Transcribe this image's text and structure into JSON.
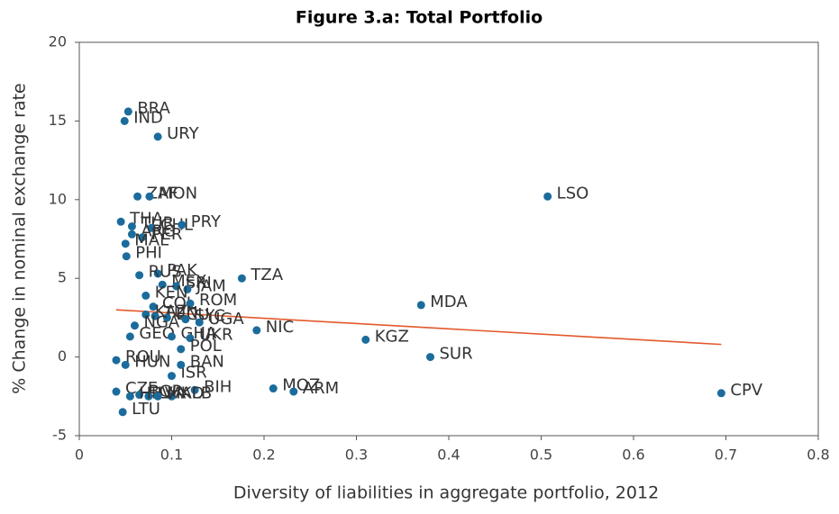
{
  "chart_data": {
    "type": "scatter",
    "title": "Figure 3.a: Total Portfolio",
    "xlabel": "Diversity of liabilities in aggregate portfolio, 2012",
    "ylabel": "% Change in nominal exchange rate",
    "xlim": [
      0,
      0.8
    ],
    "xticks": [
      0,
      0.1,
      0.2,
      0.3,
      0.4,
      0.5,
      0.6,
      0.7,
      0.8
    ],
    "ylim": [
      -5,
      20
    ],
    "yticks": [
      -5,
      0,
      5,
      10,
      15,
      20
    ],
    "color": "#1b6c9c",
    "labels": [
      "BRA",
      "IND",
      "URY",
      "ZAF",
      "MON",
      "THA",
      "TUR",
      "CHL",
      "PRY",
      "ARG",
      "PER",
      "MAL",
      "PHI",
      "PAK",
      "RUS",
      "MEX",
      "SRI",
      "JAM",
      "TZA",
      "KEN",
      "COL",
      "ROM",
      "KAZ",
      "TUN",
      "ECU",
      "SYC",
      "UGA",
      "NGA",
      "NIC",
      "GEO",
      "MDA",
      "KGZ",
      "SUR",
      "LSO",
      "CPV",
      "GHA",
      "UKR",
      "POL",
      "ROU",
      "HUN",
      "ISR",
      "BAN",
      "MOZ",
      "ARM",
      "BIH",
      "ALB",
      "CZE",
      "BGR",
      "LTU",
      "LVA",
      "HRV",
      "MKD"
    ],
    "x": [
      0.053,
      0.049,
      0.085,
      0.063,
      0.076,
      0.045,
      0.057,
      0.078,
      0.111,
      0.057,
      0.068,
      0.05,
      0.051,
      0.085,
      0.065,
      0.09,
      0.105,
      0.117,
      0.176,
      0.072,
      0.08,
      0.12,
      0.072,
      0.082,
      0.095,
      0.115,
      0.13,
      0.06,
      0.192,
      0.055,
      0.37,
      0.31,
      0.38,
      0.507,
      0.695,
      0.1,
      0.12,
      0.11,
      0.04,
      0.05,
      0.1,
      0.11,
      0.21,
      0.232,
      0.125,
      0.1,
      0.04,
      0.065,
      0.047,
      0.075,
      0.055,
      0.085
    ],
    "values": [
      15.6,
      15.0,
      14.0,
      10.2,
      10.2,
      8.6,
      8.3,
      8.2,
      8.4,
      7.8,
      7.6,
      7.2,
      6.4,
      5.3,
      5.2,
      4.6,
      4.5,
      4.3,
      5.0,
      3.9,
      3.2,
      3.4,
      2.7,
      2.6,
      2.5,
      2.4,
      2.2,
      2.0,
      1.7,
      1.3,
      3.3,
      1.1,
      0.0,
      10.2,
      -2.3,
      1.3,
      1.2,
      0.5,
      -0.2,
      -0.5,
      -1.2,
      -0.5,
      -2.0,
      -2.2,
      -2.1,
      -2.5,
      -2.2,
      -2.4,
      -3.5,
      -2.5,
      -2.5,
      -2.5
    ],
    "trend": {
      "color": "#e2592b",
      "x": [
        0.04,
        0.695
      ],
      "values": [
        3.0,
        0.8
      ]
    }
  }
}
